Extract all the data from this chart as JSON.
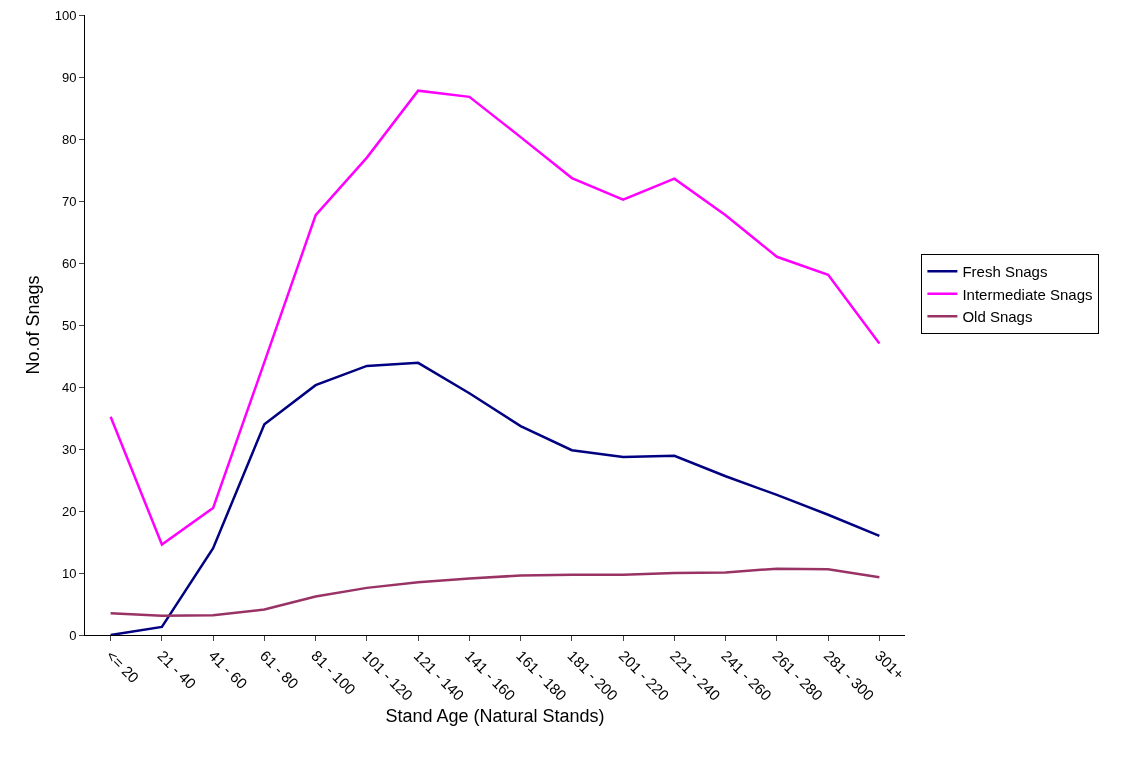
{
  "chart_data": {
    "type": "line",
    "xlabel": "Stand Age (Natural Stands)",
    "ylabel": "No.of Snags",
    "categories": [
      "<= 20",
      "21 - 40",
      "41 - 60",
      "61 - 80",
      "81 - 100",
      "101 - 120",
      "121 - 140",
      "141 - 160",
      "161 - 180",
      "181 - 200",
      "201 - 220",
      "221 - 240",
      "241 - 260",
      "261 - 280",
      "281 - 300",
      "301+"
    ],
    "series": [
      {
        "name": "Fresh Snags",
        "color": "#000080",
        "values": [
          0,
          1.3,
          14,
          34,
          40.3,
          43.4,
          43.9,
          39,
          33.7,
          29.8,
          28.7,
          28.9,
          25.6,
          22.6,
          19.4,
          16
        ]
      },
      {
        "name": "Intermediate Snags",
        "color": "#ff00ff",
        "values": [
          35.2,
          14.6,
          20.5,
          44,
          67.7,
          77,
          87.8,
          86.8,
          80.3,
          73.7,
          70.2,
          73.6,
          67.7,
          61,
          58.1,
          47
        ]
      },
      {
        "name": "Old Snags",
        "color": "#993366",
        "values": [
          3.5,
          3.1,
          3.2,
          4.1,
          6.2,
          7.6,
          8.5,
          9.1,
          9.6,
          9.7,
          9.7,
          10,
          10.1,
          10.7,
          10.6,
          9.3
        ]
      }
    ],
    "ylim": [
      0,
      100
    ],
    "yticks": [
      0,
      10,
      20,
      30,
      40,
      50,
      60,
      70,
      80,
      90,
      100
    ],
    "grid": false,
    "legend": "right",
    "marker": "none",
    "line_style": "solid"
  }
}
